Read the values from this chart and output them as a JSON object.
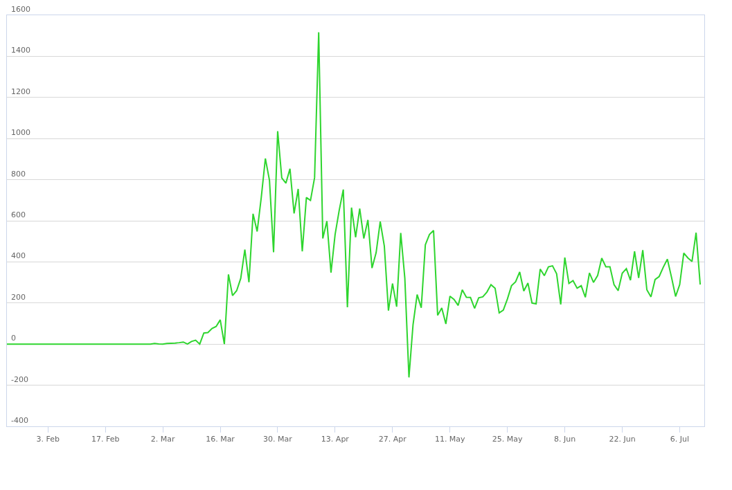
{
  "chart_data": {
    "type": "line",
    "x": [
      "--01-24",
      "--02-28",
      "--02-29",
      "--03-01",
      "--03-02",
      "--03-03",
      "--03-04",
      "--03-05",
      "--03-06",
      "--03-07",
      "--03-08",
      "--03-09",
      "--03-10",
      "--03-11",
      "--03-12",
      "--03-13",
      "--03-14",
      "--03-15",
      "--03-16",
      "--03-17",
      "--03-18",
      "--03-19",
      "--03-20",
      "--03-21",
      "--03-22",
      "--03-23",
      "--03-24",
      "--03-25",
      "--03-26",
      "--03-27",
      "--03-28",
      "--03-29",
      "--03-30",
      "--03-31",
      "--04-01",
      "--04-02",
      "--04-03",
      "--04-04",
      "--04-05",
      "--04-06",
      "--04-07",
      "--04-08",
      "--04-09",
      "--04-10",
      "--04-11",
      "--04-12",
      "--04-13",
      "--04-14",
      "--04-15",
      "--04-16",
      "--04-17",
      "--04-18",
      "--04-19",
      "--04-20",
      "--04-21",
      "--04-22",
      "--04-23",
      "--04-24",
      "--04-25",
      "--04-26",
      "--04-27",
      "--04-28",
      "--04-29",
      "--04-30",
      "--05-01",
      "--05-02",
      "--05-03",
      "--05-04",
      "--05-05",
      "--05-06",
      "--05-07",
      "--05-08",
      "--05-09",
      "--05-10",
      "--05-11",
      "--05-12",
      "--05-13",
      "--05-14",
      "--05-15",
      "--05-16",
      "--05-17",
      "--05-18",
      "--05-19",
      "--05-20",
      "--05-21",
      "--05-22",
      "--05-23",
      "--05-24",
      "--05-25",
      "--05-26",
      "--05-27",
      "--05-28",
      "--05-29",
      "--05-30",
      "--05-31",
      "--06-01",
      "--06-02",
      "--06-03",
      "--06-04",
      "--06-05",
      "--06-06",
      "--06-07",
      "--06-08",
      "--06-09",
      "--06-10",
      "--06-11",
      "--06-12",
      "--06-13",
      "--06-14",
      "--06-15",
      "--06-16",
      "--06-17",
      "--06-18",
      "--06-19",
      "--06-20",
      "--06-21",
      "--06-22",
      "--06-23",
      "--06-24",
      "--06-25",
      "--06-26",
      "--06-27",
      "--06-28",
      "--06-29",
      "--06-30",
      "--07-01",
      "--07-02",
      "--07-03",
      "--07-04",
      "--07-05",
      "--07-06",
      "--07-07",
      "--07-08",
      "--07-09",
      "--07-10",
      "--07-11"
    ],
    "series": [
      {
        "color": "#2ed52e",
        "values": [
          0,
          0,
          3,
          1,
          0,
          3,
          4,
          5,
          7,
          10,
          0,
          13,
          19,
          0,
          54,
          56,
          76,
          86,
          118,
          0,
          339,
          236,
          260,
          320,
          460,
          301,
          634,
          548,
          713,
          903,
          797,
          447,
          1036,
          808,
          783,
          853,
          636,
          755,
          451,
          713,
          699,
          810,
          1517,
          514,
          598,
          348,
          533,
          651,
          752,
          179,
          664,
          520,
          659,
          514,
          604,
          370,
          445,
          596,
          477,
          163,
          295,
          182,
          541,
          320,
          -162,
          95,
          241,
          177,
          483,
          533,
          553,
          140,
          176,
          98,
          233,
          217,
          188,
          264,
          228,
          227,
          174,
          225,
          230,
          253,
          289,
          272,
          152,
          165,
          219,
          284,
          303,
          351,
          258,
          297,
          200,
          196,
          365,
          333,
          376,
          381,
          342,
          193,
          421,
          295,
          309,
          272,
          284,
          228,
          346,
          300,
          334,
          418,
          376,
          376,
          289,
          260,
          345,
          367,
          311,
          451,
          322,
          457,
          264,
          230,
          314,
          329,
          374,
          413,
          326,
          232,
          289,
          443,
          419,
          402,
          542,
          290
        ]
      }
    ],
    "xlim": [
      "--01-24",
      "--07-12"
    ],
    "xticks": [
      {
        "value": "--02-03",
        "label": "3. Feb"
      },
      {
        "value": "--02-17",
        "label": "17. Feb"
      },
      {
        "value": "--03-02",
        "label": "2. Mar"
      },
      {
        "value": "--03-16",
        "label": "16. Mar"
      },
      {
        "value": "--03-30",
        "label": "30. Mar"
      },
      {
        "value": "--04-13",
        "label": "13. Apr"
      },
      {
        "value": "--04-27",
        "label": "27. Apr"
      },
      {
        "value": "--05-11",
        "label": "11. May"
      },
      {
        "value": "--05-25",
        "label": "25. May"
      },
      {
        "value": "--06-08",
        "label": "8. Jun"
      },
      {
        "value": "--06-22",
        "label": "22. Jun"
      },
      {
        "value": "--07-06",
        "label": "6. Jul"
      }
    ],
    "ylim": [
      -400,
      1600
    ],
    "yticks": [
      -400,
      -200,
      0,
      200,
      400,
      600,
      800,
      1000,
      1200,
      1400,
      1600
    ],
    "grid": "y",
    "marker": "none",
    "line_style": "solid"
  }
}
